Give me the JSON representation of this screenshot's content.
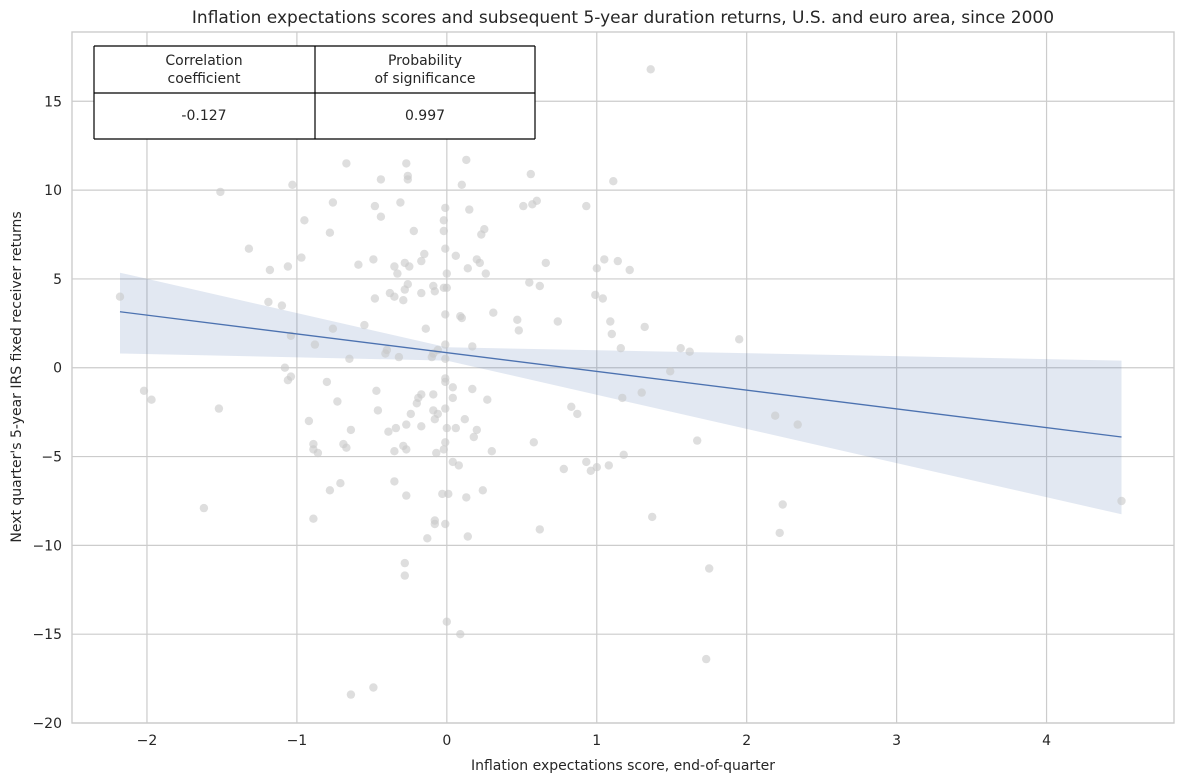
{
  "chart_data": {
    "type": "scatter",
    "title": "Inflation expectations scores and subsequent 5-year duration returns, U.S. and euro area, since 2000",
    "xlabel": "Inflation expectations score, end-of-quarter",
    "ylabel": "Next quarter's 5-year IRS fixed receiver returns",
    "xlim": [
      -2.5,
      4.85
    ],
    "ylim": [
      -20,
      18.9
    ],
    "xticks": [
      -2,
      -1,
      0,
      1,
      2,
      3,
      4
    ],
    "yticks": [
      -20,
      -15,
      -10,
      -5,
      0,
      5,
      10,
      15
    ],
    "xtick_labels": [
      "−2",
      "−1",
      "0",
      "1",
      "2",
      "3",
      "4"
    ],
    "ytick_labels": [
      "−20",
      "−15",
      "−10",
      "−5",
      "0",
      "5",
      "10",
      "15"
    ],
    "grid": true,
    "colors": {
      "points": "#c8c8c8",
      "regression": "#4c72b0",
      "band": "#4c72b0"
    },
    "regression": {
      "x_range": [
        -2.18,
        4.5
      ],
      "y_at_start": 3.15,
      "y_at_end": -3.9,
      "ci_upper_start": 5.35,
      "ci_lower_start": 0.8,
      "ci_upper_end": 0.4,
      "ci_lower_end": -8.25,
      "ci_center_upper": 1.15,
      "ci_center_lower": 0.4,
      "ci_center_x": 0.0
    },
    "points": [
      [
        -2.18,
        4.0
      ],
      [
        -2.02,
        -1.3
      ],
      [
        -1.97,
        -1.8
      ],
      [
        -1.62,
        -7.9
      ],
      [
        -1.51,
        9.9
      ],
      [
        -1.52,
        -2.3
      ],
      [
        -1.32,
        6.7
      ],
      [
        -1.18,
        5.5
      ],
      [
        -1.19,
        3.7
      ],
      [
        -1.1,
        3.5
      ],
      [
        -1.06,
        5.7
      ],
      [
        -1.03,
        10.3
      ],
      [
        -1.06,
        -0.7
      ],
      [
        -1.04,
        -0.5
      ],
      [
        -1.08,
        0.0
      ],
      [
        -1.04,
        1.8
      ],
      [
        -0.97,
        6.2
      ],
      [
        -0.95,
        8.3
      ],
      [
        -0.92,
        -3.0
      ],
      [
        -0.89,
        -4.3
      ],
      [
        -0.89,
        -4.6
      ],
      [
        -0.86,
        -4.8
      ],
      [
        -0.89,
        -8.5
      ],
      [
        -0.88,
        1.3
      ],
      [
        -0.8,
        -0.8
      ],
      [
        -0.78,
        7.6
      ],
      [
        -0.76,
        2.2
      ],
      [
        -0.76,
        9.3
      ],
      [
        -0.78,
        -6.9
      ],
      [
        -0.73,
        -1.9
      ],
      [
        -0.71,
        -6.5
      ],
      [
        -0.69,
        -4.3
      ],
      [
        -0.67,
        -4.5
      ],
      [
        -0.67,
        11.5
      ],
      [
        -0.65,
        0.5
      ],
      [
        -0.64,
        -3.5
      ],
      [
        -0.64,
        -18.4
      ],
      [
        -0.59,
        5.8
      ],
      [
        -0.55,
        2.4
      ],
      [
        -0.49,
        6.1
      ],
      [
        -0.48,
        9.1
      ],
      [
        -0.48,
        3.9
      ],
      [
        -0.46,
        -2.4
      ],
      [
        -0.47,
        -1.3
      ],
      [
        -0.44,
        10.6
      ],
      [
        -0.44,
        8.5
      ],
      [
        -0.49,
        -18.0
      ],
      [
        -0.41,
        0.8
      ],
      [
        -0.39,
        -3.6
      ],
      [
        -0.4,
        1.0
      ],
      [
        -0.38,
        4.2
      ],
      [
        -0.35,
        4.0
      ],
      [
        -0.35,
        5.7
      ],
      [
        -0.33,
        5.3
      ],
      [
        -0.31,
        9.3
      ],
      [
        -0.32,
        0.6
      ],
      [
        -0.34,
        -3.4
      ],
      [
        -0.35,
        -4.7
      ],
      [
        -0.35,
        -6.4
      ],
      [
        -0.29,
        3.8
      ],
      [
        -0.28,
        4.4
      ],
      [
        -0.28,
        5.9
      ],
      [
        -0.27,
        11.5
      ],
      [
        -0.26,
        10.8
      ],
      [
        -0.26,
        10.6
      ],
      [
        -0.26,
        4.7
      ],
      [
        -0.25,
        5.7
      ],
      [
        -0.22,
        7.7
      ],
      [
        -0.24,
        -2.6
      ],
      [
        -0.27,
        -3.2
      ],
      [
        -0.29,
        -4.4
      ],
      [
        -0.27,
        -4.6
      ],
      [
        -0.27,
        -7.2
      ],
      [
        -0.28,
        -11.0
      ],
      [
        -0.28,
        -11.7
      ],
      [
        -0.2,
        -2.0
      ],
      [
        -0.19,
        -1.7
      ],
      [
        -0.17,
        -1.5
      ],
      [
        -0.17,
        -3.3
      ],
      [
        -0.17,
        4.2
      ],
      [
        -0.17,
        6.0
      ],
      [
        -0.15,
        6.4
      ],
      [
        -0.14,
        2.2
      ],
      [
        -0.13,
        -9.6
      ],
      [
        -0.1,
        0.6
      ],
      [
        -0.09,
        0.8
      ],
      [
        -0.09,
        4.6
      ],
      [
        -0.08,
        4.3
      ],
      [
        -0.06,
        1.0
      ],
      [
        -0.09,
        -1.5
      ],
      [
        -0.09,
        -2.4
      ],
      [
        -0.08,
        -2.9
      ],
      [
        -0.06,
        -2.6
      ],
      [
        -0.07,
        -4.8
      ],
      [
        -0.08,
        -8.6
      ],
      [
        -0.08,
        -8.8
      ],
      [
        -0.03,
        -7.1
      ],
      [
        -0.02,
        7.7
      ],
      [
        -0.02,
        8.3
      ],
      [
        -0.01,
        6.7
      ],
      [
        -0.01,
        9.0
      ],
      [
        0.0,
        5.3
      ],
      [
        -0.02,
        4.5
      ],
      [
        0.0,
        4.5
      ],
      [
        -0.01,
        3.0
      ],
      [
        -0.01,
        1.3
      ],
      [
        -0.01,
        0.5
      ],
      [
        -0.01,
        -0.6
      ],
      [
        -0.01,
        -0.8
      ],
      [
        -0.01,
        -2.3
      ],
      [
        0.0,
        -3.4
      ],
      [
        -0.01,
        -4.2
      ],
      [
        -0.02,
        -4.6
      ],
      [
        0.01,
        -7.1
      ],
      [
        -0.01,
        -8.8
      ],
      [
        0.0,
        -14.3
      ],
      [
        0.04,
        -5.3
      ],
      [
        0.04,
        -1.1
      ],
      [
        0.04,
        -1.7
      ],
      [
        0.06,
        -3.4
      ],
      [
        0.06,
        6.3
      ],
      [
        0.08,
        -5.5
      ],
      [
        0.09,
        2.9
      ],
      [
        0.1,
        2.8
      ],
      [
        0.1,
        10.3
      ],
      [
        0.09,
        -15.0
      ],
      [
        0.12,
        -2.9
      ],
      [
        0.13,
        -7.3
      ],
      [
        0.14,
        -9.5
      ],
      [
        0.13,
        11.7
      ],
      [
        0.14,
        5.6
      ],
      [
        0.15,
        8.9
      ],
      [
        0.17,
        1.2
      ],
      [
        0.17,
        -1.2
      ],
      [
        0.18,
        -3.9
      ],
      [
        0.2,
        6.1
      ],
      [
        0.2,
        -3.5
      ],
      [
        0.22,
        5.9
      ],
      [
        0.23,
        7.5
      ],
      [
        0.24,
        -6.9
      ],
      [
        0.25,
        7.8
      ],
      [
        0.26,
        5.3
      ],
      [
        0.27,
        -1.8
      ],
      [
        0.3,
        -4.7
      ],
      [
        0.31,
        3.1
      ],
      [
        0.47,
        2.7
      ],
      [
        0.48,
        2.1
      ],
      [
        0.51,
        9.1
      ],
      [
        0.55,
        4.8
      ],
      [
        0.56,
        10.9
      ],
      [
        0.57,
        9.2
      ],
      [
        0.6,
        9.4
      ],
      [
        0.58,
        -4.2
      ],
      [
        0.62,
        4.6
      ],
      [
        0.62,
        -9.1
      ],
      [
        0.66,
        5.9
      ],
      [
        0.74,
        2.6
      ],
      [
        0.78,
        -5.7
      ],
      [
        0.83,
        -2.2
      ],
      [
        0.87,
        -2.6
      ],
      [
        0.93,
        -5.3
      ],
      [
        0.93,
        9.1
      ],
      [
        0.96,
        -5.8
      ],
      [
        1.0,
        -5.6
      ],
      [
        1.0,
        5.6
      ],
      [
        0.99,
        4.1
      ],
      [
        1.04,
        3.9
      ],
      [
        1.05,
        6.1
      ],
      [
        1.08,
        -5.5
      ],
      [
        1.09,
        2.6
      ],
      [
        1.1,
        1.9
      ],
      [
        1.11,
        10.5
      ],
      [
        1.14,
        6.0
      ],
      [
        1.16,
        1.1
      ],
      [
        1.17,
        -1.7
      ],
      [
        1.18,
        -4.9
      ],
      [
        1.22,
        5.5
      ],
      [
        1.3,
        -1.4
      ],
      [
        1.32,
        2.3
      ],
      [
        1.37,
        -8.4
      ],
      [
        1.36,
        16.8
      ],
      [
        1.49,
        -0.2
      ],
      [
        1.56,
        1.1
      ],
      [
        1.62,
        0.9
      ],
      [
        1.67,
        -4.1
      ],
      [
        1.73,
        -16.4
      ],
      [
        1.75,
        -11.3
      ],
      [
        1.95,
        1.6
      ],
      [
        2.19,
        -2.7
      ],
      [
        2.22,
        -9.3
      ],
      [
        2.24,
        -7.7
      ],
      [
        2.34,
        -3.2
      ],
      [
        4.5,
        -7.5
      ]
    ]
  },
  "stats_table": {
    "headers": [
      "Correlation\ncoefficient",
      "Probability\nof significance"
    ],
    "header_lines": [
      [
        "Correlation",
        "coefficient"
      ],
      [
        "Probability",
        "of significance"
      ]
    ],
    "values": [
      "-0.127",
      "0.997"
    ]
  }
}
